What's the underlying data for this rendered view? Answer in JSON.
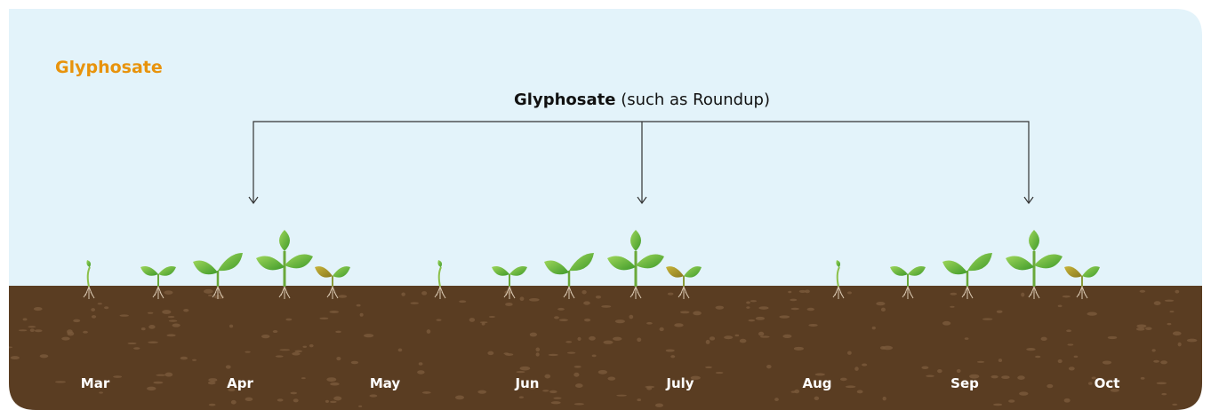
{
  "title": "Glyphosate",
  "heading": {
    "bold": "Glyphosate",
    "rest": "(such as Roundup)"
  },
  "months": [
    "Mar",
    "Apr",
    "May",
    "Jun",
    "July",
    "Aug",
    "Sep",
    "Oct"
  ]
}
